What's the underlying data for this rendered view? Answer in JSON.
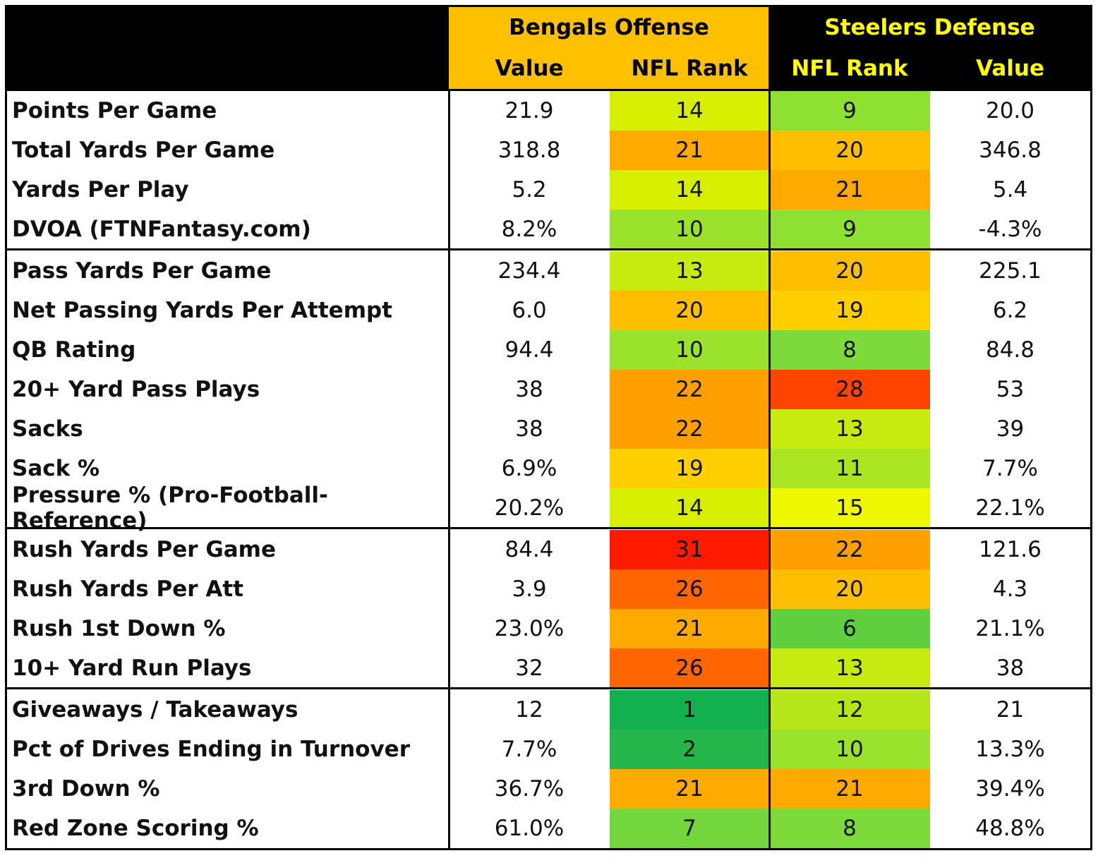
{
  "header": {
    "left_group": "Bengals Offense",
    "right_group": "Steelers Defense",
    "columns": [
      "Value",
      "NFL Rank",
      "NFL Rank",
      "Value"
    ]
  },
  "colors": {
    "header_orange": "#ffc000",
    "header_black": "#000000",
    "header_text_dark": "#000000",
    "header_text_yellow": "#ffff00"
  },
  "sections": [
    {
      "rows": [
        {
          "label": "Points Per Game",
          "off_value": "21.9",
          "off_rank": "14",
          "def_rank": "9",
          "def_value": "20.0",
          "off_color": "#d7ee00",
          "def_color": "#8ee033"
        },
        {
          "label": "Total Yards Per Game",
          "off_value": "318.8",
          "off_rank": "21",
          "def_rank": "20",
          "def_value": "346.8",
          "off_color": "#ffaa00",
          "def_color": "#ffbf00"
        },
        {
          "label": "Yards Per Play",
          "off_value": "5.2",
          "off_rank": "14",
          "def_rank": "21",
          "def_value": "5.4",
          "off_color": "#d7ee00",
          "def_color": "#ffaa00"
        },
        {
          "label": "DVOA (FTNFantasy.com)",
          "off_value": "8.2%",
          "off_rank": "10",
          "def_rank": "9",
          "def_value": "-4.3%",
          "off_color": "#9be22d",
          "def_color": "#8ee033"
        }
      ]
    },
    {
      "rows": [
        {
          "label": "Pass Yards Per Game",
          "off_value": "234.4",
          "off_rank": "13",
          "def_rank": "20",
          "def_value": "225.1",
          "off_color": "#c7ea0f",
          "def_color": "#ffbf00"
        },
        {
          "label": "Net Passing Yards Per Attempt",
          "off_value": "6.0",
          "off_rank": "20",
          "def_rank": "19",
          "def_value": "6.2",
          "off_color": "#ffbf00",
          "def_color": "#ffd000"
        },
        {
          "label": "QB Rating",
          "off_value": "94.4",
          "off_rank": "10",
          "def_rank": "8",
          "def_value": "84.8",
          "off_color": "#9be22d",
          "def_color": "#7ed93a"
        },
        {
          "label": "20+ Yard Pass Plays",
          "off_value": "38",
          "off_rank": "22",
          "def_rank": "28",
          "def_value": "53",
          "off_color": "#ffa000",
          "def_color": "#ff4400"
        },
        {
          "label": "Sacks",
          "off_value": "38",
          "off_rank": "22",
          "def_rank": "13",
          "def_value": "39",
          "off_color": "#ffa000",
          "def_color": "#c7ea0f"
        },
        {
          "label": "Sack %",
          "off_value": "6.9%",
          "off_rank": "19",
          "def_rank": "11",
          "def_value": "7.7%",
          "off_color": "#ffd000",
          "def_color": "#a9e521"
        },
        {
          "label": "Pressure % (Pro-Football-Reference)",
          "off_value": "20.2%",
          "off_rank": "14",
          "def_rank": "15",
          "def_value": "22.1%",
          "off_color": "#d7ee00",
          "def_color": "#eef900"
        }
      ]
    },
    {
      "rows": [
        {
          "label": "Rush Yards Per Game",
          "off_value": "84.4",
          "off_rank": "31",
          "def_rank": "22",
          "def_value": "121.6",
          "off_color": "#ff1a00",
          "def_color": "#ffa000"
        },
        {
          "label": "Rush Yards Per Att",
          "off_value": "3.9",
          "off_rank": "26",
          "def_rank": "20",
          "def_value": "4.3",
          "off_color": "#ff6600",
          "def_color": "#ffbf00"
        },
        {
          "label": "Rush 1st Down %",
          "off_value": "23.0%",
          "off_rank": "21",
          "def_rank": "6",
          "def_value": "21.1%",
          "off_color": "#ffaa00",
          "def_color": "#5fcf3f"
        },
        {
          "label": "10+ Yard Run Plays",
          "off_value": "32",
          "off_rank": "26",
          "def_rank": "13",
          "def_value": "38",
          "off_color": "#ff6600",
          "def_color": "#c7ea0f"
        }
      ]
    },
    {
      "rows": [
        {
          "label": "Giveaways / Takeaways",
          "off_value": "12",
          "off_rank": "1",
          "def_rank": "12",
          "def_value": "21",
          "off_color": "#12b04e",
          "def_color": "#b6e618"
        },
        {
          "label": "Pct of Drives Ending in Turnover",
          "off_value": "7.7%",
          "off_rank": "2",
          "def_rank": "10",
          "def_value": "13.3%",
          "off_color": "#24b64a",
          "def_color": "#9be22d"
        },
        {
          "label": "3rd Down %",
          "off_value": "36.7%",
          "off_rank": "21",
          "def_rank": "21",
          "def_value": "39.4%",
          "off_color": "#ffaa00",
          "def_color": "#ffaa00"
        },
        {
          "label": "Red Zone Scoring %",
          "off_value": "61.0%",
          "off_rank": "7",
          "def_rank": "8",
          "def_value": "48.8%",
          "off_color": "#72d63c",
          "def_color": "#7ed93a"
        }
      ]
    }
  ]
}
